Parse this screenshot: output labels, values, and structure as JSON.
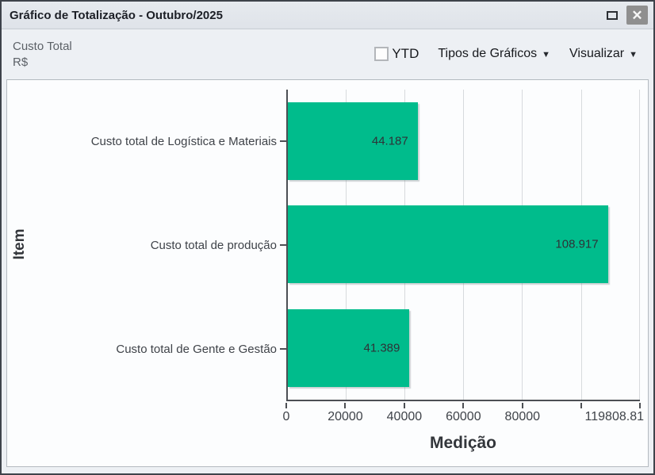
{
  "window": {
    "title": "Gráfico de Totalização - Outubro/2025"
  },
  "header": {
    "metric_line1": "Custo Total",
    "metric_line2": "R$",
    "toolbar": {
      "ytd_label": "YTD",
      "ytd_checked": false,
      "chart_types_label": "Tipos de Gráficos",
      "visualize_label": "Visualizar",
      "caret": "▼"
    }
  },
  "controls": {
    "close_glyph": "✕"
  },
  "colors": {
    "bar": "#00bc8c",
    "axis": "#4c4f54",
    "gridline": "#d7dadd",
    "titlebar_bg": "#e2e6eb",
    "close_button_bg": "#8f8f8f"
  },
  "chart_data": {
    "type": "bar",
    "orientation": "horizontal",
    "xlabel": "Medição",
    "ylabel": "Item",
    "categories": [
      "Custo total de Logística e Materiais",
      "Custo total de produção",
      "Custo total de Gente e Gestão"
    ],
    "values": [
      44187,
      108917,
      41389
    ],
    "value_labels": [
      "44.187",
      "108.917",
      "41.389"
    ],
    "xlim": [
      0,
      119808.81
    ],
    "ticks": [
      {
        "value": 0,
        "label": "0"
      },
      {
        "value": 20000,
        "label": "20000"
      },
      {
        "value": 40000,
        "label": "40000"
      },
      {
        "value": 60000,
        "label": "60000"
      },
      {
        "value": 80000,
        "label": "80000"
      },
      {
        "value": 100000,
        "label": ""
      },
      {
        "value": 119808.81,
        "label": "119808.81",
        "clamp": true
      }
    ],
    "grid": true,
    "legend": "none",
    "bar_color": "#00bc8c"
  }
}
